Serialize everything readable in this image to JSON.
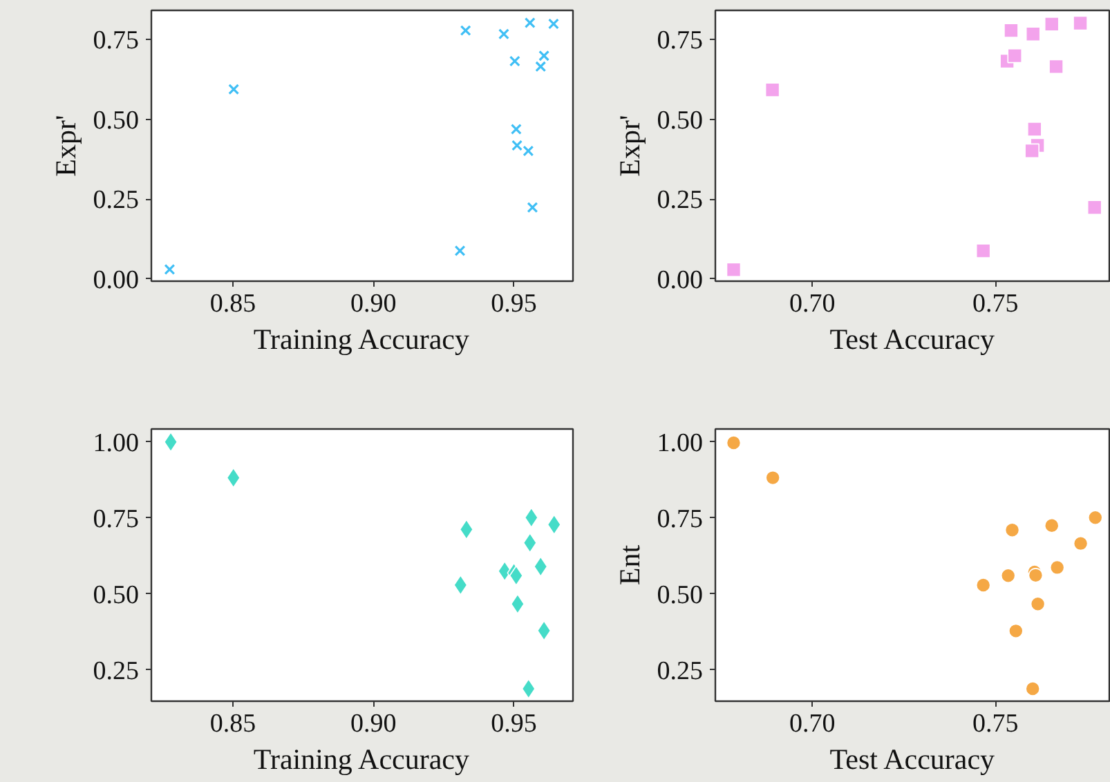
{
  "chart_data": [
    {
      "type": "scatter",
      "xlabel": "Training Accuracy",
      "ylabel": "Expr'",
      "xlim": [
        0.821,
        0.971
      ],
      "ylim": [
        -0.007,
        0.841
      ],
      "xticks": [
        {
          "value": 0.85,
          "label": "0.85"
        },
        {
          "value": 0.9,
          "label": "0.90"
        },
        {
          "value": 0.95,
          "label": "0.95"
        }
      ],
      "yticks": [
        {
          "value": 0,
          "label": "0.00"
        },
        {
          "value": 0.25,
          "label": "0.25"
        },
        {
          "value": 0.5,
          "label": "0.50"
        },
        {
          "value": 0.75,
          "label": "0.75"
        }
      ],
      "grid": false,
      "marker": "cross",
      "x": [
        0.8275,
        0.8503,
        0.9308,
        0.9328,
        0.9464,
        0.9557,
        0.9641,
        0.9503,
        0.9607,
        0.9595,
        0.9508,
        0.9511,
        0.9551,
        0.9566
      ],
      "series": [
        {
          "color": "#40bff5",
          "values": [
            0.03,
            0.594,
            0.088,
            0.778,
            0.767,
            0.802,
            0.799,
            0.682,
            0.699,
            0.665,
            0.469,
            0.418,
            0.401,
            0.224
          ]
        }
      ]
    },
    {
      "type": "scatter",
      "xlabel": "Test Accuracy",
      "ylabel": "Expr'",
      "xlim": [
        0.6735,
        0.7815
      ],
      "ylim": [
        -0.007,
        0.841
      ],
      "xticks": [
        {
          "value": 0.7,
          "label": "0.70"
        },
        {
          "value": 0.75,
          "label": "0.75"
        }
      ],
      "yticks": [
        {
          "value": 0,
          "label": "0.00"
        },
        {
          "value": 0.25,
          "label": "0.25"
        },
        {
          "value": 0.5,
          "label": "0.50"
        },
        {
          "value": 0.75,
          "label": "0.75"
        }
      ],
      "grid": false,
      "marker": "square",
      "x": [
        0.6785,
        0.6891,
        0.7467,
        0.7543,
        0.7532,
        0.7553,
        0.7603,
        0.7654,
        0.7732,
        0.7666,
        0.7607,
        0.7615,
        0.76,
        0.7771
      ],
      "series": [
        {
          "color": "#f3a3ec",
          "values": [
            0.029,
            0.592,
            0.088,
            0.778,
            0.682,
            0.699,
            0.767,
            0.798,
            0.801,
            0.665,
            0.469,
            0.418,
            0.401,
            0.224
          ]
        }
      ]
    },
    {
      "type": "scatter",
      "xlabel": "Training Accuracy",
      "xlim": [
        0.821,
        0.971
      ],
      "ylim": [
        0.147,
        1.0425
      ],
      "xticks": [
        {
          "value": 0.85,
          "label": "0.85"
        },
        {
          "value": 0.9,
          "label": "0.90"
        },
        {
          "value": 0.95,
          "label": "0.95"
        }
      ],
      "yticks": [
        {
          "value": 0.25,
          "label": "0.25"
        },
        {
          "value": 0.5,
          "label": "0.50"
        },
        {
          "value": 0.75,
          "label": "0.75"
        },
        {
          "value": 1,
          "label": "1.00"
        }
      ],
      "grid": false,
      "marker": "diamond",
      "x": [
        0.8279,
        0.8502,
        0.931,
        0.9331,
        0.9467,
        0.95,
        0.9508,
        0.9513,
        0.9562,
        0.9557,
        0.9595,
        0.9607,
        0.9552,
        0.9643
      ],
      "series": [
        {
          "color": "#45dcc8",
          "values": [
            1.0,
            0.882,
            0.529,
            0.712,
            0.575,
            0.569,
            0.56,
            0.467,
            0.751,
            0.668,
            0.59,
            0.379,
            0.188,
            0.728
          ]
        }
      ]
    },
    {
      "type": "scatter",
      "xlabel": "Test Accuracy",
      "ylabel": "Ent",
      "xlim": [
        0.6735,
        0.7815
      ],
      "ylim": [
        0.147,
        1.0425
      ],
      "xticks": [
        {
          "value": 0.7,
          "label": "0.70"
        },
        {
          "value": 0.75,
          "label": "0.75"
        }
      ],
      "yticks": [
        {
          "value": 0.25,
          "label": "0.25"
        },
        {
          "value": 0.5,
          "label": "0.50"
        },
        {
          "value": 0.75,
          "label": "0.75"
        },
        {
          "value": 1,
          "label": "1.00"
        }
      ],
      "grid": false,
      "marker": "circle",
      "x": [
        0.6785,
        0.6892,
        0.7467,
        0.7546,
        0.7535,
        0.7556,
        0.7602,
        0.7607,
        0.761,
        0.7616,
        0.7654,
        0.7669,
        0.7733,
        0.7773
      ],
      "series": [
        {
          "color": "#f5a845",
          "values": [
            0.997,
            0.882,
            0.529,
            0.71,
            0.56,
            0.378,
            0.188,
            0.572,
            0.561,
            0.467,
            0.725,
            0.587,
            0.666,
            0.751
          ]
        }
      ]
    }
  ]
}
